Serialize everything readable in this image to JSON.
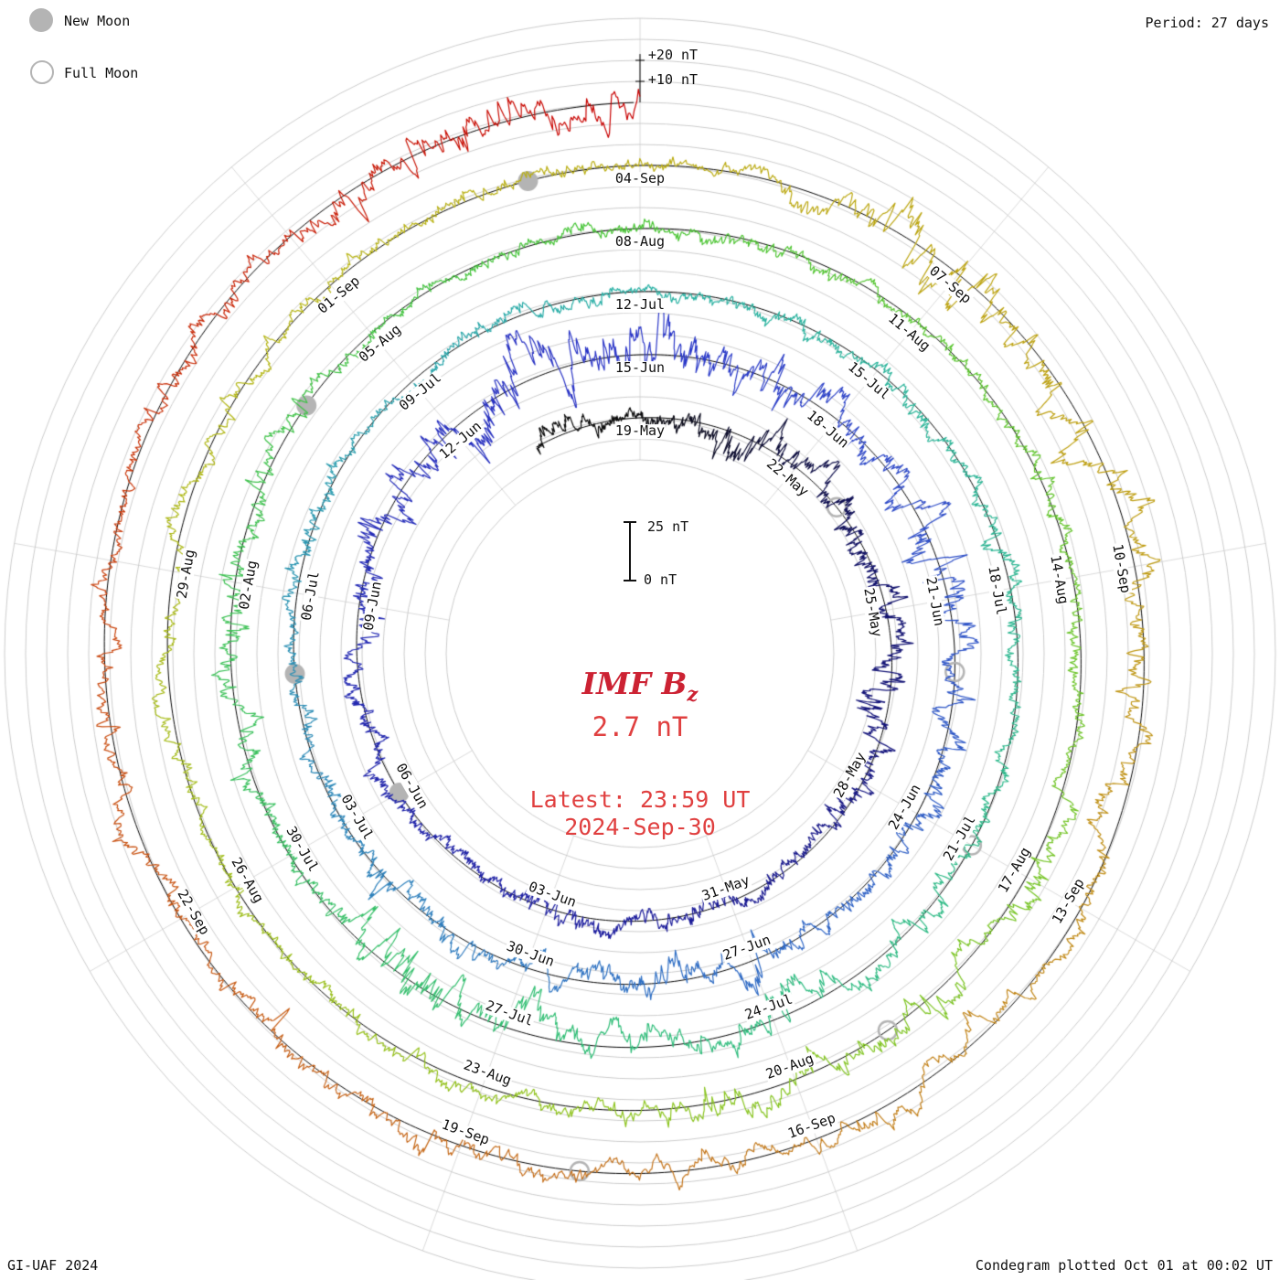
{
  "legend": {
    "new_moon_label": "New Moon",
    "full_moon_label": "Full Moon",
    "marker_color": "#b4b4b4"
  },
  "header": {
    "period_label": "Period: 27 days"
  },
  "footer": {
    "credit": "GI-UAF 2024",
    "plotted": "Condegram plotted Oct 01 at 00:02 UT"
  },
  "center_text": {
    "title_main": "IMF B",
    "title_sub": "z",
    "value": "2.7 nT",
    "latest_time": "Latest: 23:59 UT",
    "latest_date": "2024-Sep-30",
    "title_color": "#cc2233",
    "text_color": "#e04040"
  },
  "scale_bar": {
    "top_label": "25 nT",
    "bottom_label": "0 nT",
    "span_nt": 25
  },
  "radial_scale_labels": [
    {
      "text": "+20 nT",
      "nt": 20
    },
    {
      "text": "+10 nT",
      "nt": 10
    }
  ],
  "chart_data": {
    "type": "line",
    "subtype": "condegram polar spiral",
    "title": "IMF Bz",
    "units": "nT",
    "period_days": 27,
    "start_date": "2024-May-19",
    "end_datetime": "2024-Sep-30 23:59 UT",
    "latest_value_nt": 2.7,
    "wraps": 5,
    "value_range_nt": [
      -25,
      25
    ],
    "ring_step_nt": 10,
    "label_step_days": 3,
    "grid": {
      "rings": true,
      "spokes_deg": 40
    },
    "date_labels": [
      [
        0,
        "19-May"
      ],
      [
        3,
        "22-May"
      ],
      [
        6,
        "25-May"
      ],
      [
        9,
        "28-May"
      ],
      [
        12,
        "31-May"
      ],
      [
        15,
        "03-Jun"
      ],
      [
        18,
        "06-Jun"
      ],
      [
        21,
        "09-Jun"
      ],
      [
        24,
        "12-Jun"
      ],
      [
        27,
        "15-Jun"
      ],
      [
        30,
        "18-Jun"
      ],
      [
        33,
        "21-Jun"
      ],
      [
        36,
        "24-Jun"
      ],
      [
        39,
        "27-Jun"
      ],
      [
        42,
        "30-Jun"
      ],
      [
        45,
        "03-Jul"
      ],
      [
        48,
        "06-Jul"
      ],
      [
        51,
        "09-Jul"
      ],
      [
        54,
        "12-Jul"
      ],
      [
        57,
        "15-Jul"
      ],
      [
        60,
        "18-Jul"
      ],
      [
        63,
        "21-Jul"
      ],
      [
        66,
        "24-Jul"
      ],
      [
        69,
        "27-Jul"
      ],
      [
        72,
        "30-Jul"
      ],
      [
        75,
        "02-Aug"
      ],
      [
        78,
        "05-Aug"
      ],
      [
        81,
        "08-Aug"
      ],
      [
        84,
        "11-Aug"
      ],
      [
        87,
        "14-Aug"
      ],
      [
        90,
        "17-Aug"
      ],
      [
        93,
        "20-Aug"
      ],
      [
        96,
        "23-Aug"
      ],
      [
        99,
        "26-Aug"
      ],
      [
        102,
        "29-Aug"
      ],
      [
        105,
        "01-Sep"
      ],
      [
        108,
        "04-Sep"
      ],
      [
        111,
        "07-Sep"
      ],
      [
        114,
        "10-Sep"
      ],
      [
        117,
        "13-Sep"
      ],
      [
        120,
        "16-Sep"
      ],
      [
        123,
        "19-Sep"
      ],
      [
        126,
        "22-Sep"
      ]
    ],
    "moon_markers": {
      "new_moon_days": [
        18,
        47,
        77,
        107
      ],
      "full_moon_days": [
        4,
        34,
        63,
        92,
        122
      ]
    },
    "color_stops": [
      [
        0.0,
        "#0a0a0a"
      ],
      [
        0.04,
        "#10106a"
      ],
      [
        0.1,
        "#1d1d9c"
      ],
      [
        0.2,
        "#2a35c8"
      ],
      [
        0.3,
        "#2f6fc4"
      ],
      [
        0.4,
        "#28b0a4"
      ],
      [
        0.5,
        "#2fbd7a"
      ],
      [
        0.6,
        "#46c432"
      ],
      [
        0.7,
        "#8cc41e"
      ],
      [
        0.78,
        "#b8b414"
      ],
      [
        0.84,
        "#bd9d0e"
      ],
      [
        0.9,
        "#c4741c"
      ],
      [
        0.95,
        "#c9480e"
      ],
      [
        1.0,
        "#c80000"
      ]
    ],
    "noise_model": {
      "seed": 20240930,
      "ar": 0.93,
      "sigma": 1.5,
      "env_ar": 0.9975,
      "env_sigma": 0.07,
      "hf_sigma": 0.8,
      "clamp_nt": 24,
      "samples": 12000,
      "t_start_day": -2,
      "t_end_day": 134.999
    }
  }
}
